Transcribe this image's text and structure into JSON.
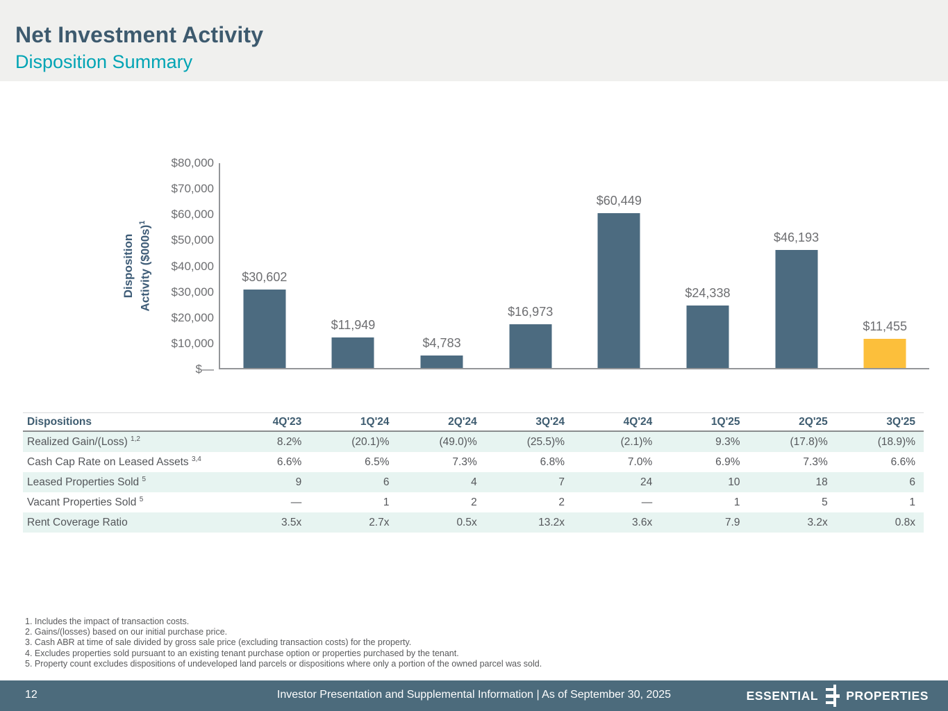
{
  "slide": {
    "title": "Net Investment Activity",
    "subtitle": "Disposition Summary"
  },
  "chart_data": {
    "type": "bar",
    "title": "Disposition Activity ($000s)",
    "ylabel_line1": "Disposition",
    "ylabel_line2": "Activity ($000s)",
    "ylabel_sup": "1",
    "categories": [
      "4Q'23",
      "1Q'24",
      "2Q'24",
      "3Q'24",
      "4Q'24",
      "1Q'25",
      "2Q'25",
      "3Q'25"
    ],
    "values": [
      30602,
      11949,
      4783,
      16973,
      60449,
      24338,
      46193,
      11455
    ],
    "value_labels": [
      "$30,602",
      "$11,949",
      "$4,783",
      "$16,973",
      "$60,449",
      "$24,338",
      "$46,193",
      "$11,455"
    ],
    "yticks": [
      "$80,000",
      "$70,000",
      "$60,000",
      "$50,000",
      "$40,000",
      "$30,000",
      "$20,000",
      "$10,000",
      "$—"
    ],
    "ylim": [
      0,
      80000
    ],
    "grid": false,
    "legend": "none",
    "bar_color": "#4c6b80",
    "highlight_color": "#fcbf3b",
    "highlight_index": 7
  },
  "table": {
    "header": [
      "Dispositions",
      "4Q'23",
      "1Q'24",
      "2Q'24",
      "3Q'24",
      "4Q'24",
      "1Q'25",
      "2Q'25",
      "3Q'25"
    ],
    "rows": [
      {
        "label": "Realized Gain/(Loss)",
        "sup": "1,2",
        "values": [
          "8.2%",
          "(20.1)%",
          "(49.0)%",
          "(25.5)%",
          "(2.1)%",
          "9.3%",
          "(17.8)%",
          "(18.9)%"
        ]
      },
      {
        "label": "Cash Cap Rate on Leased Assets",
        "sup": "3,4",
        "values": [
          "6.6%",
          "6.5%",
          "7.3%",
          "6.8%",
          "7.0%",
          "6.9%",
          "7.3%",
          "6.6%"
        ]
      },
      {
        "label": "Leased Properties Sold",
        "sup": "5",
        "values": [
          "9",
          "6",
          "4",
          "7",
          "24",
          "10",
          "18",
          "6"
        ]
      },
      {
        "label": "Vacant Properties Sold",
        "sup": "5",
        "values": [
          "—",
          "1",
          "2",
          "2",
          "—",
          "1",
          "5",
          "1"
        ]
      },
      {
        "label": "Rent Coverage Ratio",
        "sup": "",
        "values": [
          "3.5x",
          "2.7x",
          "0.5x",
          "13.2x",
          "3.6x",
          "7.9",
          "3.2x",
          "0.8x"
        ]
      }
    ]
  },
  "footnotes": [
    "1. Includes the impact of transaction costs.",
    "2. Gains/(losses) based on our initial purchase price.",
    "3. Cash ABR at time of sale divided by gross sale price (excluding transaction costs) for the property.",
    "4. Excludes properties sold pursuant to an existing tenant purchase option or properties purchased by the tenant.",
    "5. Property count excludes dispositions of undeveloped land parcels or dispositions where only a portion of the owned parcel was sold."
  ],
  "footer": {
    "page": "12",
    "text": "Investor Presentation and Supplemental Information |  As of September 30, 2025",
    "logo_left": "ESSENTIAL",
    "logo_right": "PROPERTIES"
  }
}
